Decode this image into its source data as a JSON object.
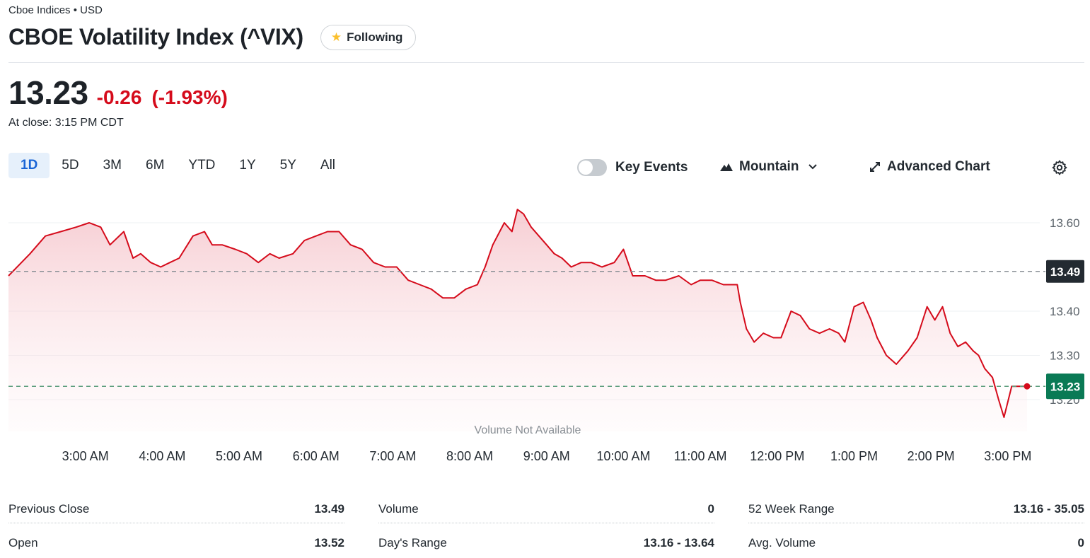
{
  "header": {
    "exchange": "Cboe Indices • USD",
    "title": "CBOE Volatility Index (^VIX)",
    "follow_label": "Following"
  },
  "quote": {
    "price": "13.23",
    "change": "-0.26",
    "change_pct": "(-1.93%)",
    "close_time": "At close: 3:15 PM CDT"
  },
  "range_tabs": [
    "1D",
    "5D",
    "3M",
    "6M",
    "YTD",
    "1Y",
    "5Y",
    "All"
  ],
  "range_selected": "1D",
  "toolbar": {
    "key_events_label": "Key Events",
    "key_events_on": false,
    "chart_type_label": "Mountain",
    "advanced_label": "Advanced Chart"
  },
  "chart_data": {
    "type": "area",
    "x_ticks": [
      "3:00 AM",
      "4:00 AM",
      "5:00 AM",
      "6:00 AM",
      "7:00 AM",
      "8:00 AM",
      "9:00 AM",
      "10:00 AM",
      "11:00 AM",
      "12:00 PM",
      "1:00 PM",
      "2:00 PM",
      "3:00 PM"
    ],
    "y_ticks": [
      "13.60",
      "13.40",
      "13.30",
      "13.20"
    ],
    "ylim": [
      13.14,
      13.66
    ],
    "previous_close": 13.49,
    "previous_close_label": "13.49",
    "last_price": 13.23,
    "last_price_label": "13.23",
    "volume_note": "Volume Not Available",
    "line_color": "#d50b1b",
    "x_hours": [
      2.0,
      2.28,
      2.48,
      2.68,
      2.88,
      3.05,
      3.2,
      3.32,
      3.5,
      3.62,
      3.72,
      3.85,
      3.98,
      4.1,
      4.22,
      4.4,
      4.55,
      4.65,
      4.78,
      4.95,
      5.1,
      5.25,
      5.4,
      5.52,
      5.7,
      5.85,
      6.0,
      6.15,
      6.3,
      6.45,
      6.6,
      6.75,
      6.9,
      7.05,
      7.2,
      7.35,
      7.5,
      7.65,
      7.8,
      7.95,
      8.1,
      8.2,
      8.3,
      8.45,
      8.55,
      8.62,
      8.7,
      8.8,
      8.9,
      9.0,
      9.1,
      9.2,
      9.32,
      9.45,
      9.58,
      9.72,
      9.88,
      10.0,
      10.12,
      10.28,
      10.42,
      10.55,
      10.72,
      10.88,
      11.0,
      11.15,
      11.3,
      11.48,
      11.52,
      11.6,
      11.7,
      11.82,
      11.95,
      12.05,
      12.18,
      12.3,
      12.42,
      12.55,
      12.68,
      12.8,
      12.88,
      13.0,
      13.12,
      13.22,
      13.3,
      13.42,
      13.55,
      13.7,
      13.82,
      13.95,
      14.05,
      14.15,
      14.25,
      14.35,
      14.45,
      14.55,
      14.62,
      14.7,
      14.8,
      14.88,
      14.95,
      15.05,
      15.15,
      15.25
    ],
    "values": [
      13.48,
      13.53,
      13.57,
      13.58,
      13.59,
      13.6,
      13.59,
      13.55,
      13.58,
      13.52,
      13.53,
      13.51,
      13.5,
      13.51,
      13.52,
      13.57,
      13.58,
      13.55,
      13.55,
      13.54,
      13.53,
      13.51,
      13.53,
      13.52,
      13.53,
      13.56,
      13.57,
      13.58,
      13.58,
      13.55,
      13.54,
      13.51,
      13.5,
      13.5,
      13.47,
      13.46,
      13.45,
      13.43,
      13.43,
      13.45,
      13.46,
      13.5,
      13.55,
      13.6,
      13.58,
      13.63,
      13.62,
      13.59,
      13.57,
      13.55,
      13.53,
      13.52,
      13.5,
      13.51,
      13.51,
      13.5,
      13.51,
      13.54,
      13.48,
      13.48,
      13.47,
      13.47,
      13.48,
      13.46,
      13.47,
      13.47,
      13.46,
      13.46,
      13.42,
      13.36,
      13.33,
      13.35,
      13.34,
      13.34,
      13.4,
      13.39,
      13.36,
      13.35,
      13.36,
      13.35,
      13.33,
      13.41,
      13.42,
      13.38,
      13.34,
      13.3,
      13.28,
      13.31,
      13.34,
      13.41,
      13.38,
      13.41,
      13.35,
      13.32,
      13.33,
      13.31,
      13.3,
      13.27,
      13.25,
      13.2,
      13.16,
      13.23,
      13.23,
      13.23
    ]
  },
  "stats": [
    [
      {
        "label": "Previous Close",
        "value": "13.49"
      },
      {
        "label": "Open",
        "value": "13.52"
      }
    ],
    [
      {
        "label": "Volume",
        "value": "0"
      },
      {
        "label": "Day's Range",
        "value": "13.16 - 13.64"
      }
    ],
    [
      {
        "label": "52 Week Range",
        "value": "13.16 - 35.05"
      },
      {
        "label": "Avg. Volume",
        "value": "0"
      }
    ]
  ]
}
